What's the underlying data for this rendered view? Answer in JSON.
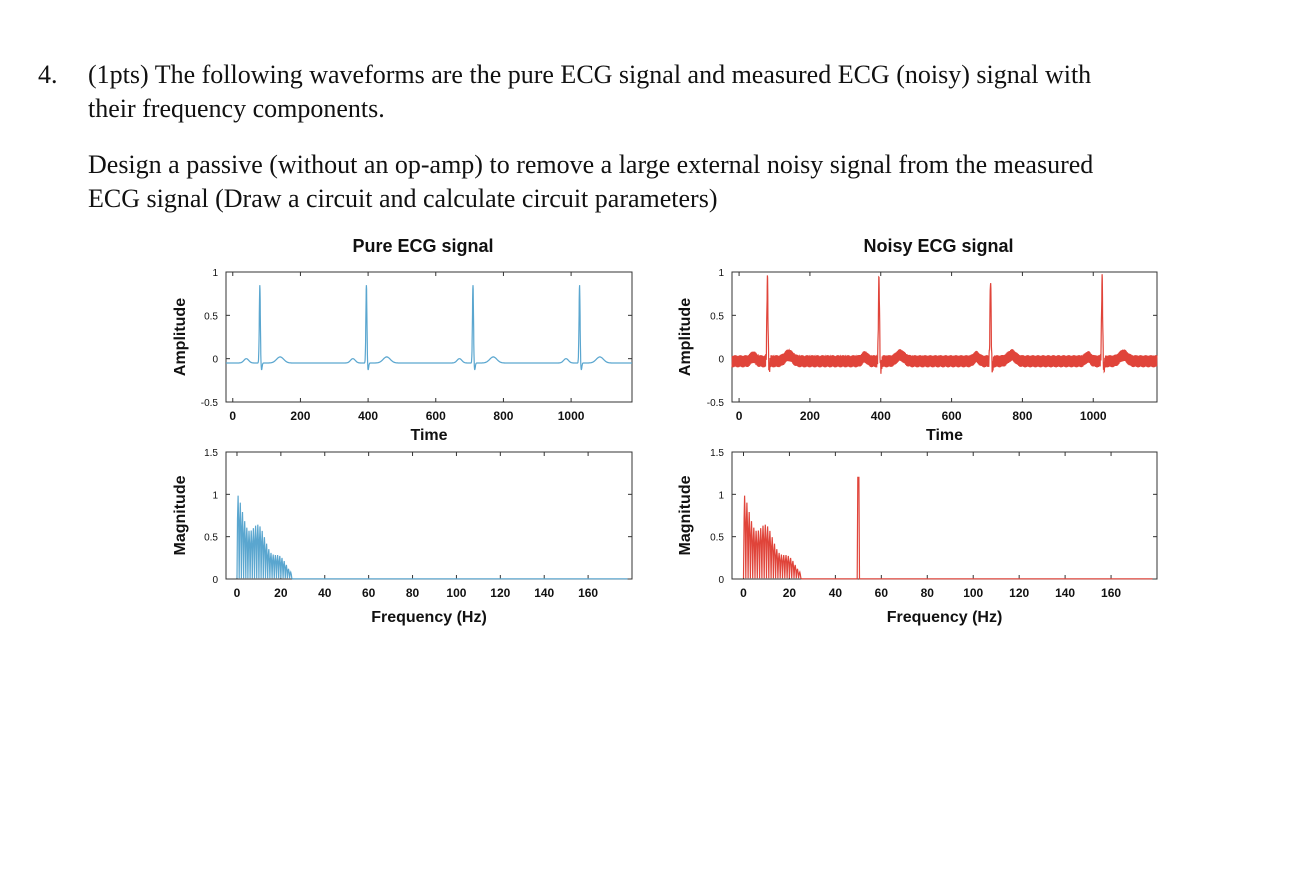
{
  "question": {
    "number": "4.",
    "line1": "(1pts) The following waveforms are the pure ECG signal and measured ECG (noisy) signal with",
    "line2": "their frequency components.",
    "design_line1": "Design a passive (without an op-amp) to remove a large external noisy signal from the measured",
    "design_line2": "ECG signal (Draw a circuit and calculate circuit parameters)"
  },
  "colors": {
    "pure": "#5aa6cf",
    "noisy": "#e0443a",
    "axis": "#333333"
  },
  "chart_data": [
    {
      "type": "line",
      "title": "Pure ECG signal",
      "xlabel": "Time",
      "ylabel": "Amplitude",
      "xlim": [
        -20,
        1180
      ],
      "ylim": [
        -0.5,
        1
      ],
      "xticks": [
        "0",
        "200",
        "400",
        "600",
        "800",
        "1000"
      ],
      "xtick_values": [
        0,
        200,
        400,
        600,
        800,
        1000
      ],
      "yticks": [
        "-0.5",
        "0",
        "0.5",
        "1"
      ],
      "ytick_values": [
        -0.5,
        0,
        0.5,
        1
      ],
      "beats_at": [
        80,
        395,
        710,
        1025
      ],
      "peak_amplitude": 0.9,
      "baseline": -0.05,
      "noise_amplitude": 0
    },
    {
      "type": "line",
      "title": "Noisy ECG signal",
      "xlabel": "Time",
      "ylabel": "Amplitude",
      "xlim": [
        -20,
        1180
      ],
      "ylim": [
        -0.5,
        1
      ],
      "xticks": [
        "0",
        "200",
        "400",
        "600",
        "800",
        "1000"
      ],
      "xtick_values": [
        0,
        200,
        400,
        600,
        800,
        1000
      ],
      "yticks": [
        "-0.5",
        "0",
        "0.5",
        "1"
      ],
      "ytick_values": [
        -0.5,
        0,
        0.5,
        1
      ],
      "beats_at": [
        80,
        395,
        710,
        1025
      ],
      "peak_amplitude": 0.95,
      "baseline": -0.03,
      "noise_amplitude": 0.07
    },
    {
      "type": "line",
      "title": "",
      "xlabel": "Frequency (Hz)",
      "ylabel": "Magnitude",
      "xlim": [
        -5,
        180
      ],
      "ylim": [
        0,
        1.5
      ],
      "xticks": [
        "0",
        "20",
        "40",
        "60",
        "80",
        "100",
        "120",
        "140",
        "160"
      ],
      "xtick_values": [
        0,
        20,
        40,
        60,
        80,
        100,
        120,
        140,
        160
      ],
      "yticks": [
        "0",
        "0.5",
        "1",
        "1.5"
      ],
      "ytick_values": [
        0,
        0.5,
        1,
        1.5
      ],
      "spectrum_extent_hz": 25,
      "spectrum_peak": 1.0,
      "spike_hz": null,
      "spike_magnitude": null
    },
    {
      "type": "line",
      "title": "",
      "xlabel": "Frequency (Hz)",
      "ylabel": "Magnitude",
      "xlim": [
        -5,
        180
      ],
      "ylim": [
        0,
        1.5
      ],
      "xticks": [
        "0",
        "20",
        "40",
        "60",
        "80",
        "100",
        "120",
        "140",
        "160"
      ],
      "xtick_values": [
        0,
        20,
        40,
        60,
        80,
        100,
        120,
        140,
        160
      ],
      "yticks": [
        "0",
        "0.5",
        "1",
        "1.5"
      ],
      "ytick_values": [
        0,
        0.5,
        1,
        1.5
      ],
      "spectrum_extent_hz": 25,
      "spectrum_peak": 1.0,
      "spike_hz": 50,
      "spike_magnitude": 1.2
    }
  ]
}
